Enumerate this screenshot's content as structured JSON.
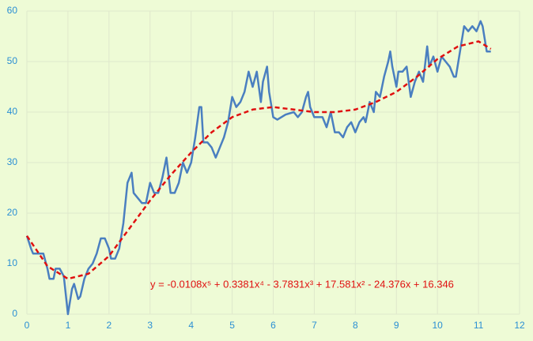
{
  "chart_data": {
    "type": "line",
    "annotation": "y = -0.0108x⁵ + 0.3381x⁴ - 3.7831x³ + 17.581x² - 24.376x + 16.346",
    "xlim": [
      0,
      12
    ],
    "xticks": [
      0,
      1,
      2,
      3,
      4,
      5,
      6,
      7,
      8,
      9,
      10,
      11,
      12
    ],
    "ylim": [
      0,
      60
    ],
    "yticks": [
      0,
      10,
      20,
      30,
      40,
      50,
      60
    ],
    "grid": true,
    "series": [
      {
        "color": "#4a7fc0",
        "dashed": false,
        "x": [
          0,
          0.1,
          0.15,
          0.3,
          0.4,
          0.5,
          0.55,
          0.65,
          0.7,
          0.8,
          0.9,
          1.0,
          1.1,
          1.15,
          1.25,
          1.3,
          1.4,
          1.5,
          1.6,
          1.7,
          1.8,
          1.9,
          2.0,
          2.05,
          2.15,
          2.25,
          2.35,
          2.45,
          2.55,
          2.6,
          2.7,
          2.8,
          2.9,
          3.0,
          3.1,
          3.2,
          3.3,
          3.4,
          3.5,
          3.6,
          3.7,
          3.8,
          3.9,
          4.0,
          4.1,
          4.2,
          4.25,
          4.3,
          4.4,
          4.5,
          4.6,
          4.7,
          4.8,
          4.9,
          5.0,
          5.1,
          5.2,
          5.3,
          5.4,
          5.5,
          5.6,
          5.7,
          5.75,
          5.85,
          5.9,
          6.0,
          6.1,
          6.3,
          6.5,
          6.6,
          6.7,
          6.8,
          6.85,
          6.9,
          7.0,
          7.2,
          7.3,
          7.4,
          7.5,
          7.6,
          7.7,
          7.8,
          7.9,
          8.0,
          8.1,
          8.2,
          8.25,
          8.35,
          8.45,
          8.5,
          8.6,
          8.7,
          8.8,
          8.85,
          8.9,
          9.0,
          9.05,
          9.15,
          9.25,
          9.35,
          9.45,
          9.55,
          9.65,
          9.75,
          9.8,
          9.9,
          10.0,
          10.1,
          10.2,
          10.3,
          10.4,
          10.45,
          10.55,
          10.65,
          10.75,
          10.85,
          10.95,
          11.05,
          11.1,
          11.2,
          11.3
        ],
        "values": [
          15.5,
          13,
          12,
          12,
          12,
          9,
          7,
          7,
          9,
          9,
          7.5,
          0,
          5,
          6,
          3,
          3.5,
          7,
          9,
          10,
          12,
          15,
          15,
          13,
          11,
          11,
          13,
          18,
          26,
          28,
          24,
          23,
          22,
          22,
          26,
          24,
          24,
          27,
          31,
          24,
          24,
          26,
          30,
          28,
          30,
          35,
          41,
          41,
          34,
          34,
          33,
          31,
          33,
          35,
          38,
          43,
          41,
          42,
          44,
          48,
          45,
          48,
          42,
          46,
          49,
          44,
          39,
          38.5,
          39.5,
          40,
          39,
          40,
          43,
          44,
          41,
          39,
          39,
          37,
          40,
          36,
          36,
          35,
          37,
          38,
          36,
          38,
          39,
          38,
          42,
          40,
          44,
          43,
          47,
          50,
          52,
          49,
          45,
          48,
          48,
          49,
          43,
          46,
          48,
          46,
          53,
          49,
          51,
          48,
          51,
          50,
          49,
          47,
          47,
          52,
          57,
          56,
          57,
          56,
          58,
          57,
          52,
          52
        ]
      },
      {
        "color": "#e01010",
        "dashed": true,
        "x": [
          0,
          0.5,
          1,
          1.5,
          2,
          2.5,
          3,
          3.5,
          4,
          4.5,
          5,
          5.5,
          6,
          6.5,
          7,
          7.5,
          8,
          8.5,
          9,
          9.5,
          10,
          10.5,
          11,
          11.3
        ],
        "values": [
          15.5,
          9.5,
          7,
          8,
          11.5,
          17,
          22.5,
          27.5,
          32,
          36,
          39,
          40.5,
          41,
          40.5,
          40,
          40,
          40.5,
          42,
          44,
          47,
          50.5,
          53,
          54,
          52.5
        ]
      }
    ]
  }
}
